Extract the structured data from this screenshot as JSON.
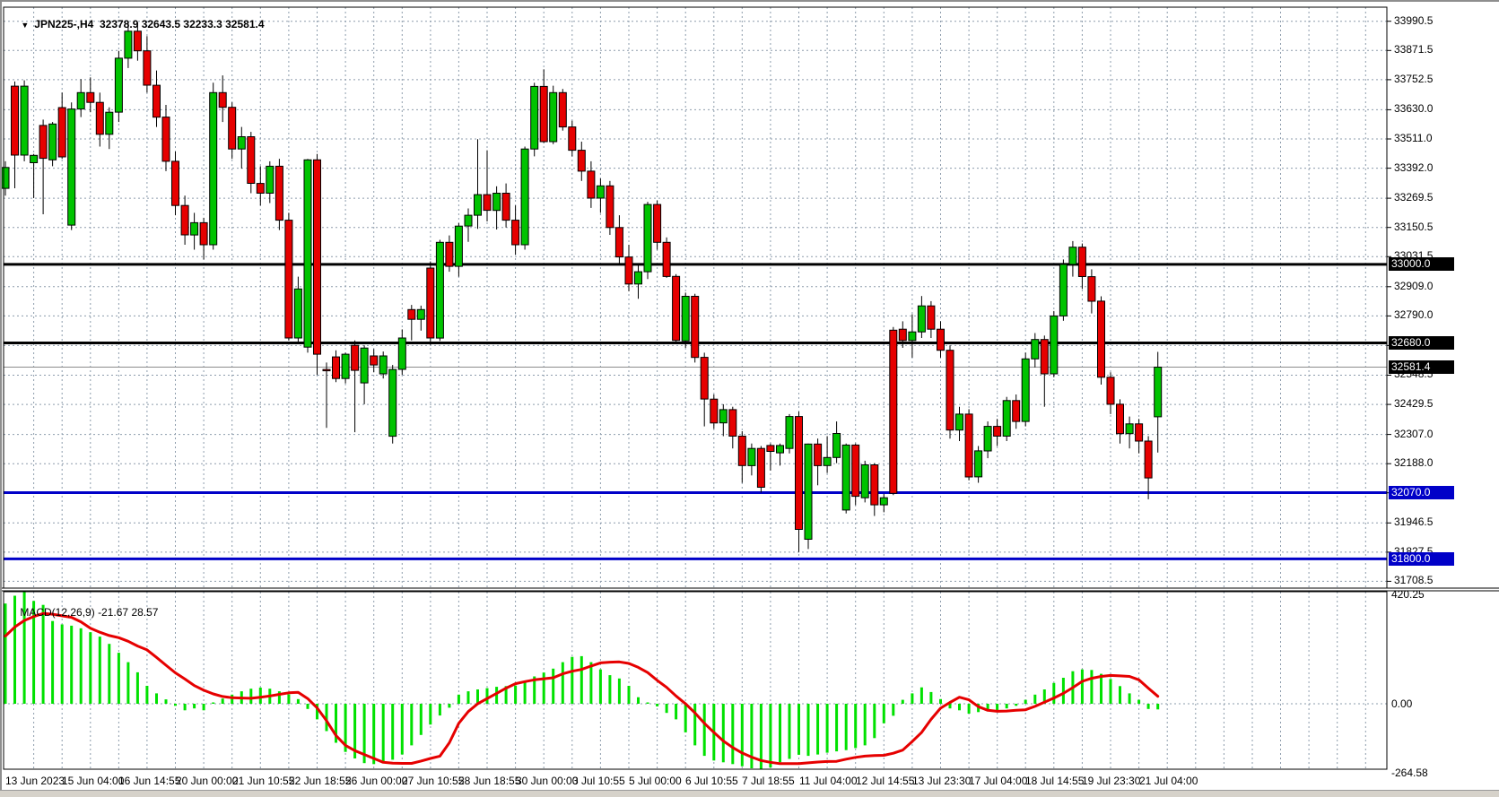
{
  "header": {
    "dropdown_icon": "▼",
    "symbol_period": "JPN225-,H4",
    "ohlc_text": "32378.9 32643.5 32233.3 32581.4"
  },
  "macd_header": {
    "label": "MACD(12,26,9)",
    "value": "-21.67",
    "signal_value": "28.57"
  },
  "colors": {
    "background": "#ffffff",
    "grid": "#8d9cac",
    "bull": "#00c300",
    "bear": "#e60000",
    "candle_border": "#000000",
    "wick": "#000000",
    "macd_hist": "#00e100",
    "macd_signal": "#e60000",
    "black_line": "#000000",
    "blue_line": "#0000c8",
    "bid_line": "#8c8c8c",
    "axis_text": "#000000"
  },
  "chart_data": [
    {
      "type": "candlestick",
      "title": "JPN225-,H4",
      "ylim": [
        31684,
        34048
      ],
      "grid": true,
      "yticks": [
        33990.5,
        33871.5,
        33752.5,
        33630.0,
        33511.0,
        33392.0,
        33269.5,
        33150.5,
        33031.5,
        32909.0,
        32790.0,
        32669.5,
        32548.5,
        32429.5,
        32307.0,
        32188.0,
        32069.0,
        31946.5,
        31827.5,
        31708.5
      ],
      "hlines": [
        {
          "price": 33000.0,
          "color": "#000000",
          "width": 3,
          "label": "33000.0",
          "label_bg": "#000000"
        },
        {
          "price": 32680.0,
          "color": "#000000",
          "width": 3,
          "label": "32680.0",
          "label_bg": "#000000"
        },
        {
          "price": 32581.4,
          "color": "#8c8c8c",
          "width": 1,
          "label": "32581.4",
          "label_bg": "#000000"
        },
        {
          "price": 32070.0,
          "color": "#0000c8",
          "width": 3,
          "label": "32070.0",
          "label_bg": "#0000c8"
        },
        {
          "price": 31800.0,
          "color": "#0000c8",
          "width": 3,
          "label": "31800.0",
          "label_bg": "#0000c8"
        }
      ],
      "ohlc": [
        [
          33310,
          33420,
          33280,
          33395
        ],
        [
          33726,
          33745,
          33310,
          33445
        ],
        [
          33445,
          33750,
          33420,
          33726
        ],
        [
          33414,
          33450,
          33270,
          33444
        ],
        [
          33566,
          33590,
          33204,
          33432
        ],
        [
          33426,
          33580,
          33400,
          33572
        ],
        [
          33639,
          33700,
          33430,
          33438
        ],
        [
          33160,
          33660,
          33140,
          33633
        ],
        [
          33633,
          33755,
          33600,
          33700
        ],
        [
          33700,
          33762,
          33620,
          33660
        ],
        [
          33660,
          33700,
          33480,
          33530
        ],
        [
          33530,
          33640,
          33470,
          33620
        ],
        [
          33620,
          33870,
          33580,
          33840
        ],
        [
          33840,
          33985,
          33800,
          33950
        ],
        [
          33950,
          33985,
          33830,
          33870
        ],
        [
          33870,
          33930,
          33700,
          33730
        ],
        [
          33730,
          33790,
          33560,
          33600
        ],
        [
          33600,
          33650,
          33380,
          33420
        ],
        [
          33420,
          33460,
          33200,
          33240
        ],
        [
          33240,
          33280,
          33080,
          33120
        ],
        [
          33120,
          33210,
          33060,
          33170
        ],
        [
          33170,
          33190,
          33020,
          33080
        ],
        [
          33080,
          33740,
          33060,
          33700
        ],
        [
          33700,
          33770,
          33580,
          33640
        ],
        [
          33640,
          33660,
          33430,
          33470
        ],
        [
          33470,
          33560,
          33390,
          33520
        ],
        [
          33520,
          33540,
          33290,
          33330
        ],
        [
          33330,
          33400,
          33240,
          33290
        ],
        [
          33290,
          33420,
          33250,
          33400
        ],
        [
          33400,
          33430,
          33140,
          33180
        ],
        [
          33180,
          33210,
          32690,
          32700
        ],
        [
          32700,
          32950,
          32680,
          32900
        ],
        [
          32663,
          33430,
          32640,
          33426
        ],
        [
          33426,
          33450,
          32550,
          32634
        ],
        [
          32572,
          32600,
          32334,
          32568
        ],
        [
          32623,
          32650,
          32520,
          32535
        ],
        [
          32535,
          32640,
          32515,
          32634
        ],
        [
          32670,
          32690,
          32316,
          32568
        ],
        [
          32517,
          32670,
          32430,
          32659
        ],
        [
          32627,
          32655,
          32560,
          32590
        ],
        [
          32554,
          32645,
          32535,
          32627
        ],
        [
          32300,
          32590,
          32270,
          32572
        ],
        [
          32572,
          32735,
          32550,
          32700
        ],
        [
          32816,
          32835,
          32690,
          32776
        ],
        [
          32776,
          32832,
          32730,
          32816
        ],
        [
          32985,
          33012,
          32672,
          32700
        ],
        [
          32700,
          33100,
          32688,
          33090
        ],
        [
          33090,
          33118,
          32970,
          32992
        ],
        [
          32992,
          33168,
          32950,
          33156
        ],
        [
          33156,
          33228,
          33092,
          33200
        ],
        [
          33200,
          33510,
          33145,
          33284
        ],
        [
          33284,
          33465,
          33175,
          33220
        ],
        [
          33220,
          33318,
          33142,
          33290
        ],
        [
          33290,
          33330,
          33150,
          33180
        ],
        [
          33180,
          33240,
          33040,
          33080
        ],
        [
          33080,
          33480,
          33060,
          33470
        ],
        [
          33470,
          33740,
          33440,
          33725
        ],
        [
          33725,
          33795,
          33495,
          33500
        ],
        [
          33500,
          33728,
          33490,
          33700
        ],
        [
          33700,
          33715,
          33545,
          33560
        ],
        [
          33560,
          33585,
          33440,
          33465
        ],
        [
          33465,
          33500,
          33340,
          33380
        ],
        [
          33380,
          33420,
          33230,
          33270
        ],
        [
          33270,
          33350,
          33210,
          33320
        ],
        [
          33320,
          33340,
          33120,
          33150
        ],
        [
          33150,
          33200,
          33000,
          33030
        ],
        [
          33030,
          33080,
          32890,
          32920
        ],
        [
          32920,
          33000,
          32860,
          32970
        ],
        [
          32970,
          33255,
          32940,
          33244
        ],
        [
          33244,
          33260,
          33060,
          33090
        ],
        [
          33090,
          33110,
          32945,
          32951
        ],
        [
          32951,
          32960,
          32680,
          32690
        ],
        [
          32688,
          32885,
          32660,
          32870
        ],
        [
          32870,
          32880,
          32600,
          32621
        ],
        [
          32621,
          32640,
          32340,
          32451
        ],
        [
          32451,
          32470,
          32330,
          32354
        ],
        [
          32354,
          32430,
          32300,
          32408
        ],
        [
          32408,
          32420,
          32250,
          32300
        ],
        [
          32300,
          32320,
          32110,
          32180
        ],
        [
          32180,
          32270,
          32140,
          32250
        ],
        [
          32250,
          32260,
          32070,
          32092
        ],
        [
          32262,
          32270,
          32160,
          32238
        ],
        [
          32232,
          32270,
          32180,
          32262
        ],
        [
          32250,
          32390,
          32230,
          32380
        ],
        [
          32380,
          32400,
          31828,
          31920
        ],
        [
          31880,
          32270,
          31840,
          32268
        ],
        [
          32268,
          32290,
          32100,
          32180
        ],
        [
          32180,
          32300,
          32150,
          32213
        ],
        [
          32213,
          32360,
          32190,
          32311
        ],
        [
          31999,
          32270,
          31985,
          32264
        ],
        [
          32264,
          32270,
          32019,
          32055
        ],
        [
          32049,
          32200,
          32030,
          32183
        ],
        [
          32183,
          32190,
          31975,
          32020
        ],
        [
          32020,
          32065,
          31990,
          32049
        ],
        [
          32732,
          32745,
          32060,
          32067
        ],
        [
          32736,
          32768,
          32660,
          32690
        ],
        [
          32690,
          32797,
          32620,
          32725
        ],
        [
          32725,
          32871,
          32700,
          32831
        ],
        [
          32831,
          32850,
          32700,
          32736
        ],
        [
          32736,
          32768,
          32620,
          32650
        ],
        [
          32650,
          32670,
          32290,
          32325
        ],
        [
          32325,
          32420,
          32280,
          32390
        ],
        [
          32390,
          32410,
          32120,
          32134
        ],
        [
          32134,
          32260,
          32110,
          32240
        ],
        [
          32240,
          32360,
          32210,
          32340
        ],
        [
          32340,
          32370,
          32260,
          32300
        ],
        [
          32300,
          32460,
          32280,
          32445
        ],
        [
          32445,
          32470,
          32330,
          32360
        ],
        [
          32360,
          32640,
          32340,
          32615
        ],
        [
          32615,
          32720,
          32580,
          32694
        ],
        [
          32694,
          32710,
          32420,
          32554
        ],
        [
          32554,
          32810,
          32540,
          32790
        ],
        [
          32790,
          33020,
          32770,
          33000
        ],
        [
          33000,
          33095,
          32950,
          33070
        ],
        [
          33070,
          33085,
          32900,
          32950
        ],
        [
          32950,
          32980,
          32800,
          32850
        ],
        [
          32850,
          32870,
          32510,
          32540
        ],
        [
          32540,
          32560,
          32390,
          32430
        ],
        [
          32430,
          32450,
          32270,
          32310
        ],
        [
          32310,
          32380,
          32250,
          32350
        ],
        [
          32350,
          32370,
          32230,
          32280
        ],
        [
          32280,
          32300,
          32043,
          32130
        ],
        [
          32378.9,
          32643.5,
          32233.3,
          32581.4
        ]
      ]
    },
    {
      "type": "bar",
      "title": "MACD(12,26,9)",
      "ylim": [
        -264.58,
        420.25
      ],
      "yticks": [
        420.25,
        0.0,
        -264.58
      ],
      "ytick_labels": [
        "420.25",
        "0.00",
        "-264.58"
      ],
      "values": [
        385,
        415,
        430,
        395,
        380,
        318,
        305,
        300,
        290,
        275,
        258,
        230,
        196,
        160,
        121,
        69,
        40,
        17,
        -8,
        -25,
        -18,
        -25,
        5,
        20,
        35,
        48,
        58,
        62,
        58,
        48,
        36,
        18,
        -20,
        -60,
        -105,
        -150,
        -185,
        -210,
        -228,
        -232,
        -228,
        -215,
        -195,
        -160,
        -120,
        -80,
        -45,
        -15,
        35,
        48,
        55,
        60,
        65,
        68,
        70,
        85,
        105,
        120,
        135,
        160,
        180,
        183,
        160,
        132,
        110,
        97,
        69,
        25,
        5,
        -10,
        -35,
        -60,
        -110,
        -160,
        -200,
        -218,
        -225,
        -232,
        -240,
        -248,
        -250,
        -245,
        -225,
        -212,
        -196,
        -200,
        -195,
        -188,
        -183,
        -178,
        -170,
        -160,
        -132,
        -75,
        -46,
        15,
        40,
        63,
        45,
        18,
        -18,
        -25,
        -38,
        -32,
        -28,
        -25,
        -18,
        -8,
        15,
        35,
        55,
        80,
        100,
        125,
        132,
        130,
        115,
        95,
        68,
        40,
        15,
        -20,
        -21.67
      ],
      "signal": [
        260,
        295,
        320,
        335,
        347,
        344,
        338,
        332,
        315,
        290,
        275,
        262,
        254,
        240,
        222,
        207,
        178,
        148,
        119,
        95,
        70,
        52,
        38,
        28,
        23,
        22,
        21,
        25,
        30,
        36,
        42,
        44,
        20,
        -16,
        -65,
        -122,
        -160,
        -180,
        -195,
        -210,
        -225,
        -228,
        -229,
        -229,
        -220,
        -210,
        -201,
        -150,
        -75,
        -30,
        0,
        20,
        40,
        60,
        77,
        85,
        92,
        96,
        100,
        115,
        125,
        132,
        145,
        157,
        160,
        161,
        155,
        140,
        120,
        90,
        63,
        30,
        0,
        -35,
        -75,
        -110,
        -143,
        -168,
        -189,
        -205,
        -218,
        -225,
        -230,
        -230,
        -230,
        -227,
        -224,
        -222,
        -221,
        -213,
        -206,
        -201,
        -199,
        -198,
        -190,
        -178,
        -145,
        -110,
        -60,
        -17,
        5,
        25,
        15,
        -11,
        -25,
        -29,
        -28,
        -25,
        -23,
        -10,
        6,
        22,
        40,
        62,
        86,
        98,
        105,
        109,
        107,
        105,
        92,
        60,
        28.57
      ]
    }
  ],
  "x_axis": {
    "labels": [
      "13 Jun 2023",
      "15 Jun 04:00",
      "16 Jun 14:55",
      "20 Jun 00:00",
      "21 Jun 10:55",
      "22 Jun 18:55",
      "26 Jun 00:00",
      "27 Jun 10:55",
      "28 Jun 18:55",
      "30 Jun 00:00",
      "3 Jul 10:55",
      "5 Jul 00:00",
      "6 Jul 10:55",
      "7 Jul 18:55",
      "11 Jul 04:00",
      "12 Jul 14:55",
      "13 Jul 23:30",
      "17 Jul 04:00",
      "18 Jul 14:55",
      "19 Jul 23:30",
      "21 Jul 04:00"
    ],
    "label_every_bars": 6,
    "grid_every_bars": 3
  }
}
